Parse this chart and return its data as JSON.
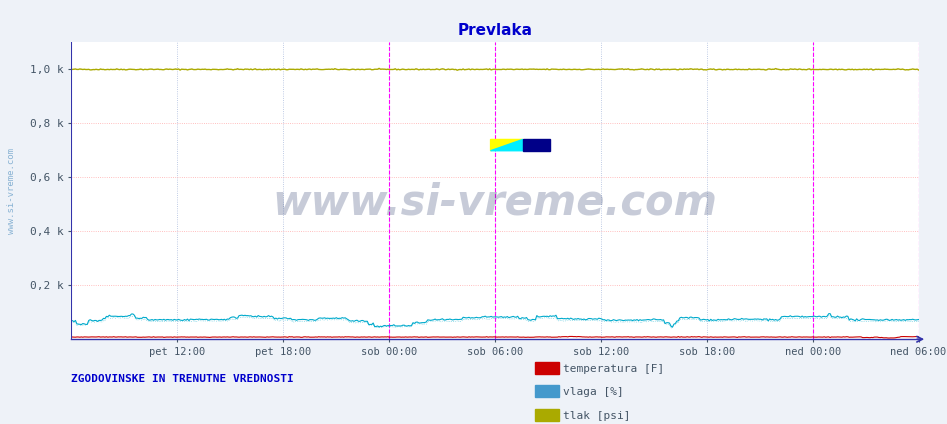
{
  "title": "Prevlaka",
  "title_color": "#0000cc",
  "title_fontsize": 11,
  "bg_color": "#eef2f8",
  "plot_bg_color": "#ffffff",
  "ylabel_ticks": [
    "0,2 k",
    "0,4 k",
    "0,6 k",
    "0,8 k",
    "1,0 k"
  ],
  "ytick_vals": [
    200,
    400,
    600,
    800,
    1000
  ],
  "ylim": [
    0,
    1100
  ],
  "xlabel_ticks": [
    "pet 12:00",
    "pet 18:00",
    "sob 00:00",
    "sob 06:00",
    "sob 12:00",
    "sob 18:00",
    "ned 00:00",
    "ned 06:00"
  ],
  "n_ticks": 8,
  "n_points": 576,
  "line_color_temp": "#cc0000",
  "line_color_vlaga": "#00aacc",
  "line_color_tlak": "#aaaa00",
  "grid_h_color": "#ffaaaa",
  "grid_v_color": "#aabbdd",
  "vline_day_color": "#ff00ff",
  "watermark_text": "www.si-vreme.com",
  "watermark_color": "#223366",
  "watermark_alpha": 0.25,
  "watermark_fontsize": 30,
  "sidebar_text": "www.si-vreme.com",
  "sidebar_color": "#4488bb",
  "bottom_left_text": "ZGODOVINSKE IN TRENUTNE VREDNOSTI",
  "bottom_left_color": "#0000cc",
  "legend_labels": [
    "temperatura [F]",
    "vlaga [%]",
    "tlak [psi]"
  ],
  "legend_colors": [
    "#cc0000",
    "#4499cc",
    "#aaaa00"
  ],
  "left_border_color": "#3333aa",
  "bottom_border_color": "#3333aa"
}
